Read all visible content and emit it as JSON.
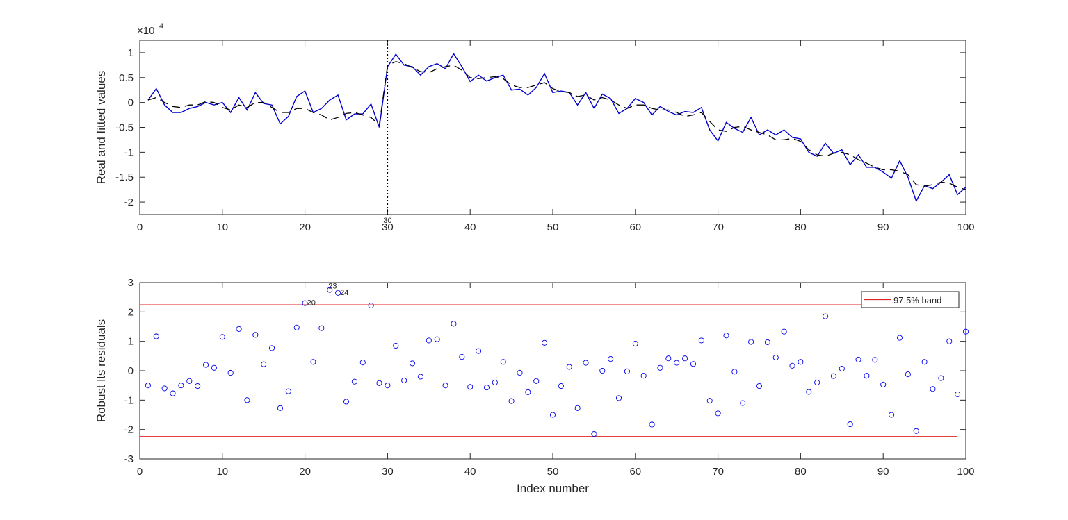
{
  "chart_data": [
    {
      "type": "line",
      "ylabel": "Real and fitted values",
      "xlabel": "",
      "exponent_label": "×10",
      "exponent_power": "4",
      "xlim": [
        0,
        100
      ],
      "ylim": [
        -2.25,
        1.25
      ],
      "xticks": [
        "0",
        "10",
        "20",
        "30",
        "40",
        "50",
        "60",
        "70",
        "80",
        "90",
        "100"
      ],
      "yticks": [
        "1",
        "0.5",
        "0",
        "-0.5",
        "-1",
        "-1.5",
        "-2"
      ],
      "ytick_values": [
        1,
        0.5,
        0,
        -0.5,
        -1,
        -1.5,
        -2
      ],
      "breakpoint": {
        "x": 30,
        "label": "30"
      },
      "series": [
        {
          "color": "#0000cc",
          "style": "solid",
          "x": [
            1,
            2,
            3,
            4,
            5,
            6,
            7,
            8,
            9,
            10,
            11,
            12,
            13,
            14,
            15,
            16,
            17,
            18,
            19,
            20,
            21,
            22,
            23,
            24,
            25,
            26,
            27,
            28,
            29,
            30,
            31,
            32,
            33,
            34,
            35,
            36,
            37,
            38,
            39,
            40,
            41,
            42,
            43,
            44,
            45,
            46,
            47,
            48,
            49,
            50,
            51,
            52,
            53,
            54,
            55,
            56,
            57,
            58,
            59,
            60,
            61,
            62,
            63,
            64,
            65,
            66,
            67,
            68,
            69,
            70,
            71,
            72,
            73,
            74,
            75,
            76,
            77,
            78,
            79,
            80,
            81,
            82,
            83,
            84,
            85,
            86,
            87,
            88,
            89,
            90,
            91,
            92,
            93,
            94,
            95,
            96,
            97,
            98,
            99,
            100
          ],
          "values": [
            0.05,
            0.28,
            -0.05,
            -0.2,
            -0.2,
            -0.12,
            -0.08,
            0.0,
            -0.05,
            0.0,
            -0.2,
            0.1,
            -0.15,
            0.2,
            -0.02,
            -0.05,
            -0.43,
            -0.28,
            0.12,
            0.23,
            -0.2,
            -0.12,
            0.05,
            0.15,
            -0.35,
            -0.23,
            -0.23,
            -0.03,
            -0.5,
            0.72,
            0.97,
            0.75,
            0.72,
            0.55,
            0.72,
            0.78,
            0.68,
            0.98,
            0.72,
            0.42,
            0.55,
            0.43,
            0.5,
            0.55,
            0.25,
            0.27,
            0.15,
            0.3,
            0.58,
            0.2,
            0.23,
            0.2,
            -0.05,
            0.2,
            -0.12,
            0.17,
            0.08,
            -0.22,
            -0.12,
            0.08,
            0.0,
            -0.25,
            -0.08,
            -0.18,
            -0.25,
            -0.18,
            -0.2,
            -0.1,
            -0.55,
            -0.77,
            -0.4,
            -0.52,
            -0.6,
            -0.3,
            -0.65,
            -0.55,
            -0.65,
            -0.55,
            -0.7,
            -0.73,
            -1.0,
            -1.08,
            -0.82,
            -1.02,
            -0.95,
            -1.25,
            -1.05,
            -1.3,
            -1.3,
            -1.4,
            -1.52,
            -1.17,
            -1.5,
            -1.98,
            -1.67,
            -1.73,
            -1.6,
            -1.45,
            -1.85,
            -1.7
          ]
        },
        {
          "color": "#000000",
          "style": "dashed",
          "x": [
            1,
            2,
            3,
            4,
            5,
            6,
            7,
            8,
            9,
            10,
            11,
            12,
            13,
            14,
            15,
            16,
            17,
            18,
            19,
            20,
            21,
            22,
            23,
            24,
            25,
            26,
            27,
            28,
            29,
            30,
            31,
            32,
            33,
            34,
            35,
            36,
            37,
            38,
            39,
            40,
            41,
            42,
            43,
            44,
            45,
            46,
            47,
            48,
            49,
            50,
            51,
            52,
            53,
            54,
            55,
            56,
            57,
            58,
            59,
            60,
            61,
            62,
            63,
            64,
            65,
            66,
            67,
            68,
            69,
            70,
            71,
            72,
            73,
            74,
            75,
            76,
            77,
            78,
            79,
            80,
            81,
            82,
            83,
            84,
            85,
            86,
            87,
            88,
            89,
            90,
            91,
            92,
            93,
            94,
            95,
            96,
            97,
            98,
            99,
            100
          ],
          "values": [
            0.05,
            0.1,
            0.0,
            -0.08,
            -0.1,
            -0.05,
            -0.05,
            0.02,
            0.0,
            -0.1,
            -0.15,
            -0.05,
            -0.1,
            0.0,
            0.0,
            -0.1,
            -0.2,
            -0.2,
            -0.12,
            -0.12,
            -0.2,
            -0.25,
            -0.35,
            -0.3,
            -0.22,
            -0.2,
            -0.25,
            -0.3,
            -0.45,
            0.75,
            0.82,
            0.78,
            0.7,
            0.62,
            0.6,
            0.68,
            0.72,
            0.75,
            0.65,
            0.5,
            0.48,
            0.5,
            0.52,
            0.48,
            0.35,
            0.3,
            0.3,
            0.35,
            0.4,
            0.28,
            0.22,
            0.2,
            0.12,
            0.15,
            0.05,
            0.1,
            0.05,
            -0.05,
            -0.12,
            -0.05,
            -0.05,
            -0.12,
            -0.15,
            -0.15,
            -0.2,
            -0.28,
            -0.25,
            -0.2,
            -0.38,
            -0.55,
            -0.58,
            -0.5,
            -0.48,
            -0.55,
            -0.6,
            -0.65,
            -0.75,
            -0.75,
            -0.72,
            -0.78,
            -0.95,
            -1.05,
            -1.08,
            -1.02,
            -1.0,
            -1.05,
            -1.15,
            -1.22,
            -1.3,
            -1.35,
            -1.35,
            -1.38,
            -1.45,
            -1.65,
            -1.68,
            -1.65,
            -1.6,
            -1.62,
            -1.7,
            -1.75
          ]
        }
      ]
    },
    {
      "type": "scatter",
      "ylabel": "Robust lts residuals",
      "xlabel": "Index number",
      "xlim": [
        0,
        100
      ],
      "ylim": [
        -3,
        3
      ],
      "xticks": [
        "0",
        "10",
        "20",
        "30",
        "40",
        "50",
        "60",
        "70",
        "80",
        "90",
        "100"
      ],
      "yticks": [
        "3",
        "2",
        "1",
        "0",
        "-1",
        "-2",
        "-3"
      ],
      "ytick_values": [
        3,
        2,
        1,
        0,
        -1,
        -2,
        -3
      ],
      "band": {
        "upper": 2.24,
        "lower": -2.24,
        "color": "#dd2222"
      },
      "legend": {
        "label": "97.5% band",
        "position": "top-right"
      },
      "point_color": "#0000ee",
      "outlier_labels": [
        {
          "x": 20,
          "label": "20"
        },
        {
          "x": 23,
          "label": "23"
        },
        {
          "x": 24,
          "label": "24"
        }
      ],
      "x": [
        1,
        2,
        3,
        4,
        5,
        6,
        7,
        8,
        9,
        10,
        11,
        12,
        13,
        14,
        15,
        16,
        17,
        18,
        19,
        20,
        21,
        22,
        23,
        24,
        25,
        26,
        27,
        28,
        29,
        30,
        31,
        32,
        33,
        34,
        35,
        36,
        37,
        38,
        39,
        40,
        41,
        42,
        43,
        44,
        45,
        46,
        47,
        48,
        49,
        50,
        51,
        52,
        53,
        54,
        55,
        56,
        57,
        58,
        59,
        60,
        61,
        62,
        63,
        64,
        65,
        66,
        67,
        68,
        69,
        70,
        71,
        72,
        73,
        74,
        75,
        76,
        77,
        78,
        79,
        80,
        81,
        82,
        83,
        84,
        85,
        86,
        87,
        88,
        89,
        90,
        91,
        92,
        93,
        94,
        95,
        96,
        97,
        98,
        99,
        100
      ],
      "y": [
        -0.5,
        1.17,
        -0.6,
        -0.77,
        -0.5,
        -0.35,
        -0.52,
        0.2,
        0.1,
        1.15,
        -0.07,
        1.42,
        -1.0,
        1.22,
        0.22,
        0.77,
        -1.27,
        -0.7,
        1.47,
        2.3,
        0.3,
        1.45,
        2.75,
        2.65,
        -1.05,
        -0.37,
        0.28,
        2.22,
        -0.42,
        -0.5,
        0.85,
        -0.33,
        0.25,
        -0.2,
        1.03,
        1.07,
        -0.5,
        1.6,
        0.47,
        -0.55,
        0.67,
        -0.57,
        -0.4,
        0.3,
        -1.03,
        -0.07,
        -0.73,
        -0.35,
        0.95,
        -1.5,
        -0.52,
        0.13,
        -1.27,
        0.27,
        -2.15,
        0.0,
        0.4,
        -0.93,
        -0.02,
        0.92,
        -0.17,
        -1.83,
        0.1,
        0.42,
        0.27,
        0.42,
        0.23,
        1.03,
        -1.02,
        -1.45,
        1.2,
        -0.03,
        -1.1,
        0.98,
        -0.52,
        0.97,
        0.45,
        1.33,
        0.17,
        0.3,
        -0.72,
        -0.4,
        1.85,
        -0.18,
        0.07,
        -1.82,
        0.38,
        -0.17,
        0.37,
        -0.47,
        -1.5,
        1.12,
        -0.12,
        -2.05,
        0.3,
        -0.62,
        -0.25,
        1.0,
        -0.8,
        1.33
      ]
    }
  ]
}
